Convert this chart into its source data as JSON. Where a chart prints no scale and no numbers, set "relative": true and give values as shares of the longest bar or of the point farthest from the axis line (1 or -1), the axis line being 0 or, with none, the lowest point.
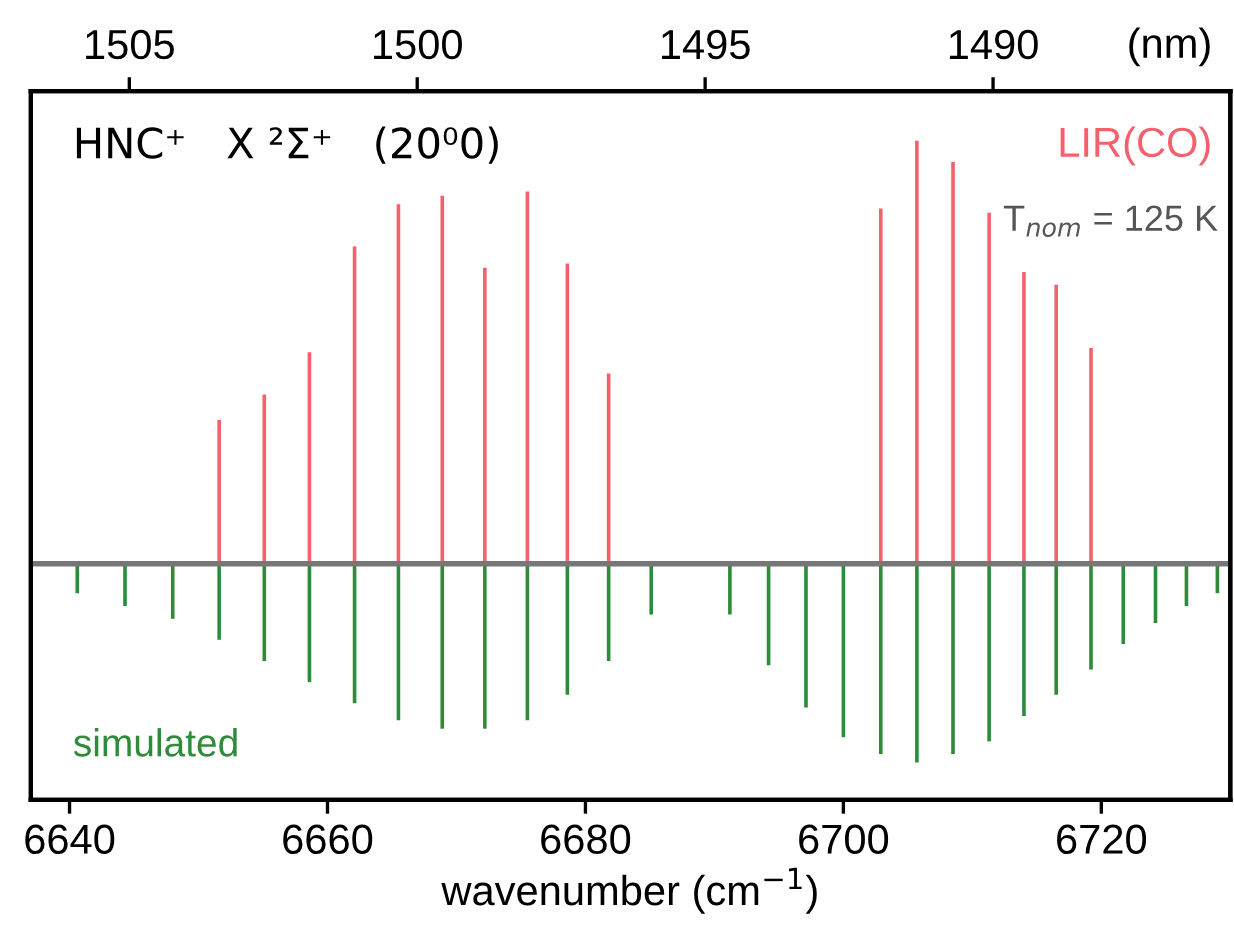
{
  "chart_data": {
    "type": "bar",
    "relative": true,
    "xlabel": "wavenumber (cm$^{−1}$)",
    "x2label": "(nm)",
    "x2lim": [
      1506.71,
      1485.88
    ],
    "xlim": [
      6637,
      6730
    ],
    "xticks": [
      6640,
      6660,
      6680,
      6700,
      6720
    ],
    "x2ticks": [
      1505,
      1500,
      1495,
      1490
    ],
    "series": [
      {
        "name": "LIR(CO)",
        "color": "#f4606c",
        "x": [
          6651.6,
          6655.1,
          6658.6,
          6662.1,
          6665.5,
          6668.9,
          6672.2,
          6675.5,
          6678.6,
          6681.8,
          6702.9,
          6705.7,
          6708.5,
          6711.3,
          6714.0,
          6716.5,
          6719.2
        ],
        "values": [
          0.34,
          0.4,
          0.5,
          0.75,
          0.85,
          0.87,
          0.7,
          0.88,
          0.71,
          0.45,
          0.84,
          1.0,
          0.95,
          0.83,
          0.69,
          0.66,
          0.51
        ]
      },
      {
        "name": "simulated",
        "color": "#2e8b3a",
        "x": [
          6640.6,
          6644.3,
          6648.0,
          6651.6,
          6655.1,
          6658.6,
          6662.1,
          6665.5,
          6668.9,
          6672.2,
          6675.5,
          6678.6,
          6681.8,
          6685.1,
          6691.2,
          6694.2,
          6697.1,
          6700.0,
          6702.9,
          6705.7,
          6708.5,
          6711.3,
          6714.0,
          6716.5,
          6719.2,
          6721.7,
          6724.2,
          6726.6,
          6729.0
        ],
        "values": [
          -0.07,
          -0.1,
          -0.13,
          -0.18,
          -0.23,
          -0.28,
          -0.33,
          -0.37,
          -0.39,
          -0.39,
          -0.37,
          -0.31,
          -0.23,
          -0.12,
          -0.12,
          -0.24,
          -0.34,
          -0.41,
          -0.45,
          -0.47,
          -0.45,
          -0.42,
          -0.36,
          -0.31,
          -0.25,
          -0.19,
          -0.14,
          -0.1,
          -0.07
        ]
      }
    ],
    "ref_lines": [
      {
        "axis": "y",
        "value": 0,
        "color": "#777777"
      }
    ],
    "annotations": [
      "HNC⁺   X ²Σ⁺   (20⁰0)",
      "T$_{nom}$ = 125 K"
    ]
  }
}
